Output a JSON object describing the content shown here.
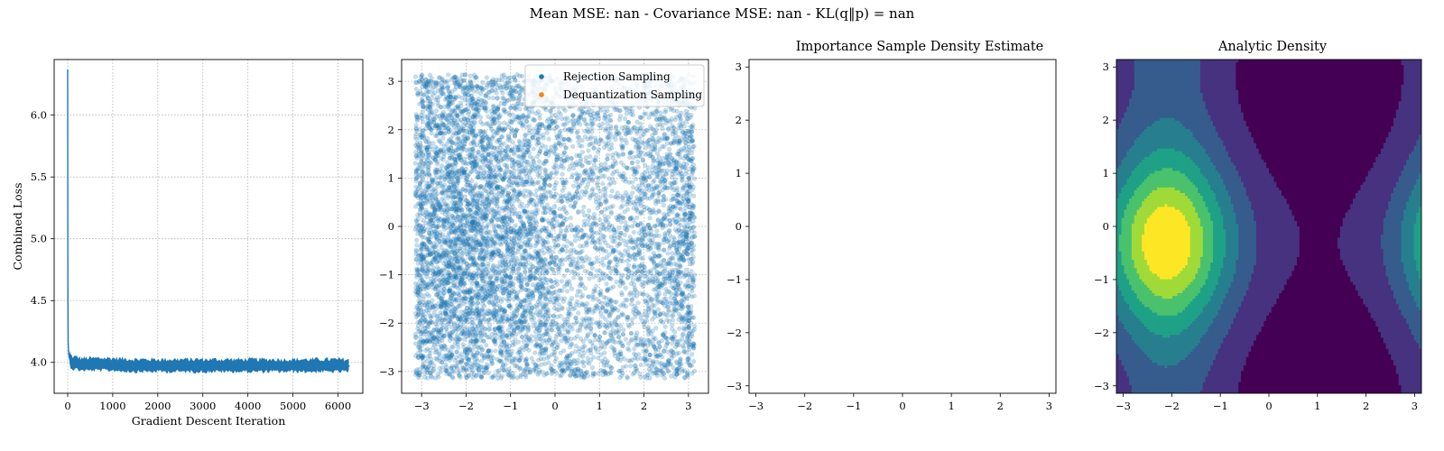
{
  "suptitle": "Mean MSE: nan - Covariance MSE: nan - KL(q‖p) = nan",
  "colors": {
    "series_blue": "#1f77b4",
    "series_orange": "#ff7f0e",
    "viridis": [
      "#440154",
      "#46327e",
      "#365c8d",
      "#277f8e",
      "#1fa187",
      "#4ac16d",
      "#a0da39",
      "#fde725"
    ]
  },
  "chart_data": [
    {
      "type": "line",
      "title": "",
      "xlabel": "Gradient Descent Iteration",
      "ylabel": "Combined Loss",
      "xlim": [
        -300,
        6550
      ],
      "ylim": [
        3.75,
        6.45
      ],
      "xticks": [
        0,
        1000,
        2000,
        3000,
        4000,
        5000,
        6000
      ],
      "yticks": [
        4.0,
        4.5,
        5.0,
        5.5,
        6.0
      ],
      "ytick_labels": [
        "4.0",
        "4.5",
        "5.0",
        "5.5",
        "6.0"
      ],
      "grid": true,
      "series": [
        {
          "x": [
            0,
            5,
            10,
            20,
            30,
            50,
            80,
            120,
            200,
            300,
            500,
            800,
            1000,
            1500,
            2000,
            2500,
            3000,
            3500,
            4000,
            4500,
            5000,
            5500,
            6000,
            6260
          ],
          "y": [
            6.37,
            4.6,
            4.17,
            4.08,
            4.05,
            4.02,
            4.0,
            3.99,
            3.99,
            3.98,
            3.98,
            3.98,
            3.98,
            3.97,
            3.97,
            3.97,
            3.97,
            3.97,
            3.97,
            3.97,
            3.97,
            3.97,
            3.97,
            3.97
          ],
          "noise_band": 0.06
        }
      ]
    },
    {
      "type": "scatter",
      "title": "",
      "xlim": [
        -3.45,
        3.45
      ],
      "ylim": [
        -3.45,
        3.45
      ],
      "xticks": [
        -3,
        -2,
        -1,
        0,
        1,
        2,
        3
      ],
      "yticks": [
        -3,
        -2,
        -1,
        0,
        1,
        2,
        3
      ],
      "grid": true,
      "legend": "top-right",
      "series": [
        {
          "name": "Rejection Sampling",
          "color": "#1f77b4",
          "n_points": 8000,
          "alpha": 0.25,
          "support": [
            -3.14,
            3.14
          ],
          "density_peaks": [
            {
              "x": -2.1,
              "y": -0.3
            },
            {
              "x": 3.1,
              "y": -0.3
            }
          ]
        },
        {
          "name": "Dequantization Sampling",
          "color": "#ff7f0e",
          "n_points": 0
        }
      ]
    },
    {
      "type": "heatmap",
      "title": "Importance Sample Density Estimate",
      "xlim": [
        -3.14,
        3.14
      ],
      "ylim": [
        -3.14,
        3.14
      ],
      "xticks": [
        -3,
        -2,
        -1,
        0,
        1,
        2,
        3
      ],
      "yticks": [
        -3,
        -2,
        -1,
        0,
        1,
        2,
        3
      ],
      "grid": false,
      "values": []
    },
    {
      "type": "heatmap",
      "title": "Analytic Density",
      "xlim": [
        -3.14,
        3.14
      ],
      "ylim": [
        -3.14,
        3.14
      ],
      "xticks": [
        -3,
        -2,
        -1,
        0,
        1,
        2,
        3
      ],
      "yticks": [
        -3,
        -2,
        -1,
        0,
        1,
        2,
        3
      ],
      "grid": false,
      "mode": {
        "x": -2.1,
        "y": -0.3
      },
      "contour_levels": 8
    }
  ]
}
